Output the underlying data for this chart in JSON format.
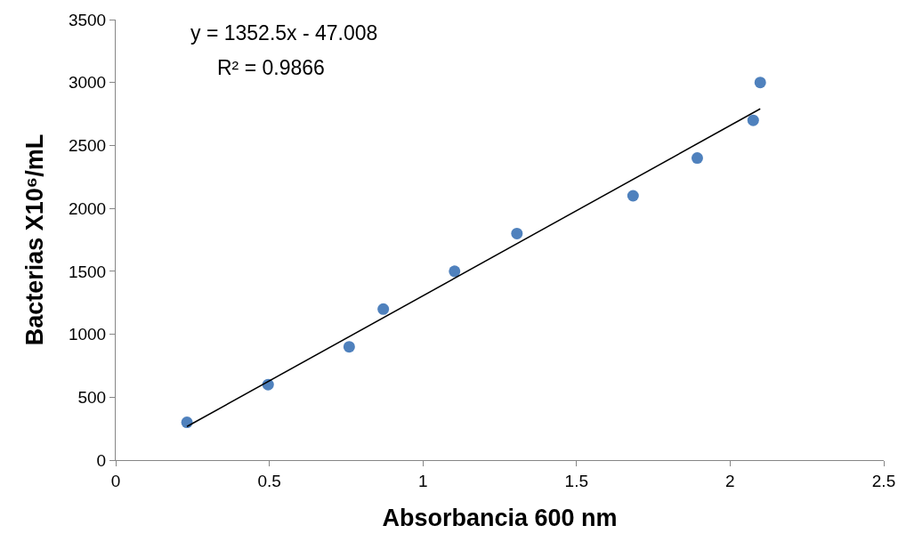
{
  "chart_data": {
    "type": "scatter",
    "xlabel": "Absorbancia 600 nm",
    "ylabel": "Bacterias X10⁶/mL",
    "annotations": [
      "y = 1352.5x - 47.008",
      "R² = 0.9866"
    ],
    "series": [
      {
        "color": "#4f81bd",
        "marker": "circle",
        "x": [
          0.232,
          0.496,
          0.76,
          0.871,
          1.103,
          1.306,
          1.684,
          1.893,
          2.075,
          2.098
        ],
        "values": [
          300,
          600,
          900,
          1200,
          1500,
          1800,
          2100,
          2400,
          2700,
          3000
        ]
      },
      {
        "type": "line",
        "color": "#000000",
        "line_style": "solid",
        "x": [
          0.232,
          2.098
        ],
        "values": [
          267,
          2791
        ]
      }
    ],
    "xlim": [
      0,
      2.5
    ],
    "xticks": [
      0,
      0.5,
      1,
      1.5,
      2,
      2.5
    ],
    "ylim": [
      0,
      3500
    ],
    "yticks": [
      0,
      500,
      1000,
      1500,
      2000,
      2500,
      3000,
      3500
    ],
    "legend": false
  }
}
